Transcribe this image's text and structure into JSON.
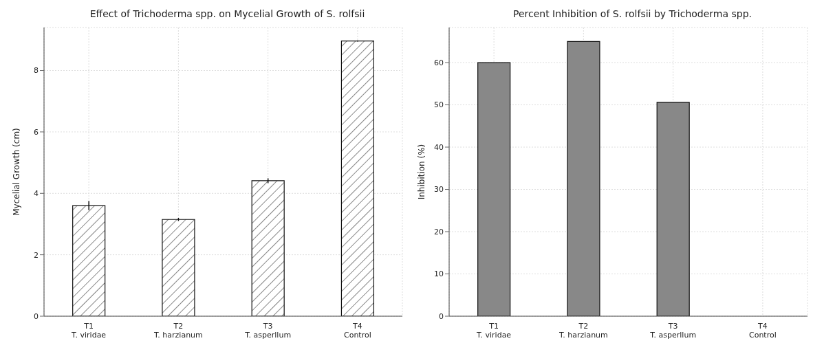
{
  "chart_data": [
    {
      "type": "bar",
      "title": "Effect of Trichoderma spp. on Mycelial Growth of S. rolfsii",
      "ylabel": "Mycelial Growth (cm)",
      "categories": [
        "T1\nT. viridae",
        "T2\nT. harzianum",
        "T3\nT. asperllum",
        "T4\nControl"
      ],
      "values": [
        3.6,
        3.15,
        4.41,
        8.96
      ],
      "errors": [
        0.15,
        0.05,
        0.08,
        0.02
      ],
      "color": "#111111",
      "ylim": [
        0,
        9.4
      ],
      "yticks": [
        0,
        2,
        4,
        6,
        8
      ],
      "grid": true
    },
    {
      "type": "bar",
      "title": "Percent Inhibition of S. rolfsii by Trichoderma spp.",
      "ylabel": "Inhibition (%)",
      "categories": [
        "T1\nT. viridae",
        "T2\nT. harzianum",
        "T3\nT. asperllum",
        "T4\nControl"
      ],
      "values": [
        60,
        65,
        50.6,
        0
      ],
      "color": "#888888",
      "ylim": [
        0,
        68.3
      ],
      "yticks": [
        0,
        10,
        20,
        30,
        40,
        50,
        60
      ],
      "grid": true
    }
  ]
}
